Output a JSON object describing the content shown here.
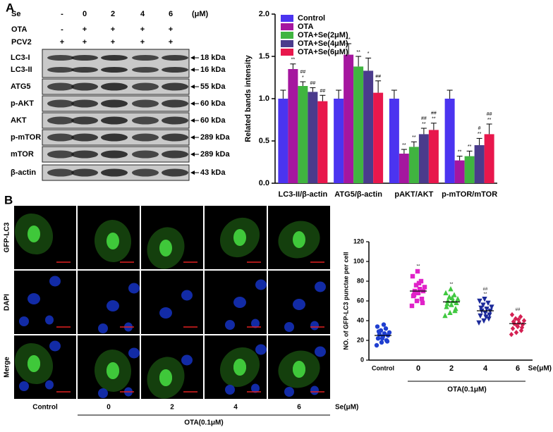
{
  "panel_a": {
    "label": "A",
    "row_labels": [
      "Se",
      "OTA",
      "PCV2"
    ],
    "lanes": [
      [
        "-",
        "0",
        "2",
        "4",
        "6"
      ],
      [
        "-",
        "+",
        "+",
        "+",
        "+"
      ],
      [
        "+",
        "+",
        "+",
        "+",
        "+"
      ]
    ],
    "unit": "(μM)",
    "blots": [
      {
        "label": "LC3-I",
        "size": "18 kDa"
      },
      {
        "label": "LC3-II",
        "size": "16 kDa"
      },
      {
        "label": "ATG5",
        "size": "55 kDa"
      },
      {
        "label": "p-AKT",
        "size": "60 kDa"
      },
      {
        "label": "AKT",
        "size": "60 kDa"
      },
      {
        "label": "p-mTOR",
        "size": "289 kDa"
      },
      {
        "label": "mTOR",
        "size": "289 kDa"
      },
      {
        "label": "β-actin",
        "size": "43 kDa"
      }
    ]
  },
  "chart_data": [
    {
      "type": "bar",
      "ylabel": "Related bands intensity",
      "categories": [
        "LC3-II/β-actin",
        "ATG5/β-actin",
        "pAKT/AKT",
        "p-mTOR/mTOR"
      ],
      "ylim": [
        0,
        2
      ],
      "yticks": [
        {
          "value": 0,
          "label": "0.0"
        },
        0.5,
        {
          "value": 1,
          "label": "1.0"
        },
        1.5,
        {
          "value": 2,
          "label": "2.0"
        }
      ],
      "legend": "top-left",
      "series": [
        {
          "name": "Control",
          "color": "#4b34f0",
          "values": [
            1.0,
            1.0,
            1.0,
            1.0
          ],
          "errors": [
            0.1,
            0.1,
            0.1,
            0.1
          ]
        },
        {
          "name": "OTA",
          "color": "#a5169f",
          "values": [
            1.35,
            1.52,
            0.35,
            0.27
          ],
          "errors": [
            0.06,
            0.13,
            0.05,
            0.05
          ],
          "annotations": [
            [
              "**"
            ],
            [
              "**"
            ],
            [
              "**"
            ],
            [
              "**"
            ]
          ]
        },
        {
          "name": "OTA+Se(2μM)",
          "color": "#40b440",
          "values": [
            1.15,
            1.38,
            0.43,
            0.32
          ],
          "errors": [
            0.05,
            0.12,
            0.06,
            0.06
          ],
          "annotations": [
            [
              "##",
              "*"
            ],
            [
              "**"
            ],
            [
              "**"
            ],
            [
              "**"
            ]
          ]
        },
        {
          "name": "OTA+Se(4μM)",
          "color": "#4a3b8c",
          "values": [
            1.08,
            1.33,
            0.58,
            0.45
          ],
          "errors": [
            0.05,
            0.15,
            0.07,
            0.08
          ],
          "annotations": [
            [
              "##"
            ],
            [
              "*"
            ],
            [
              "##",
              "**"
            ],
            [
              "#",
              "**"
            ]
          ]
        },
        {
          "name": "OTA+Se(6μM)",
          "color": "#e8174c",
          "values": [
            0.97,
            1.07,
            0.63,
            0.58
          ],
          "errors": [
            0.07,
            0.14,
            0.08,
            0.12
          ],
          "annotations": [
            [
              "##"
            ],
            [
              "##"
            ],
            [
              "##",
              "**"
            ],
            [
              "##",
              "**"
            ]
          ]
        }
      ]
    },
    {
      "type": "dot",
      "ylabel": "NO. of GFP-LC3 punctae per cell",
      "xlabel": "Se(μM)",
      "group_label": "OTA(0.1μM)",
      "categories": [
        "Control",
        "0",
        "2",
        "4",
        "6"
      ],
      "ylim": [
        0,
        120
      ],
      "yticks": [
        0,
        20,
        40,
        60,
        80,
        100,
        120
      ],
      "groups": [
        {
          "color": "#1f3fd0",
          "marker": "circle",
          "mean": 25,
          "values": [
            15,
            18,
            20,
            22,
            24,
            25,
            26,
            27,
            28,
            30,
            32,
            34,
            22,
            19,
            29,
            36
          ]
        },
        {
          "color": "#e022c8",
          "marker": "square",
          "mean": 70,
          "annotations": [
            "**"
          ],
          "values": [
            55,
            60,
            62,
            65,
            68,
            70,
            70,
            72,
            74,
            76,
            80,
            85,
            90,
            58,
            66,
            78
          ]
        },
        {
          "color": "#40c840",
          "marker": "triangle-up",
          "mean": 59,
          "annotations": [
            "**"
          ],
          "values": [
            45,
            48,
            50,
            54,
            56,
            58,
            60,
            60,
            62,
            64,
            66,
            68,
            72,
            52,
            57,
            63
          ]
        },
        {
          "color": "#1c2a9a",
          "marker": "triangle-down",
          "mean": 50,
          "annotations": [
            "##",
            "**"
          ],
          "values": [
            38,
            40,
            42,
            45,
            48,
            50,
            50,
            52,
            54,
            56,
            58,
            60,
            62,
            46,
            53,
            44
          ]
        },
        {
          "color": "#d42052",
          "marker": "diamond",
          "mean": 37,
          "annotations": [
            "##"
          ],
          "values": [
            26,
            28,
            30,
            32,
            34,
            36,
            37,
            38,
            40,
            42,
            44,
            46,
            35,
            33,
            39,
            41
          ]
        }
      ]
    }
  ],
  "panel_b": {
    "label": "B",
    "row_labels": [
      "GFP-LC3",
      "DAPI",
      "Merge"
    ],
    "col_labels": [
      "Control",
      "0",
      "2",
      "4",
      "6"
    ],
    "se_label": "Se(μM)",
    "ota_label": "OTA(0.1μM)"
  }
}
